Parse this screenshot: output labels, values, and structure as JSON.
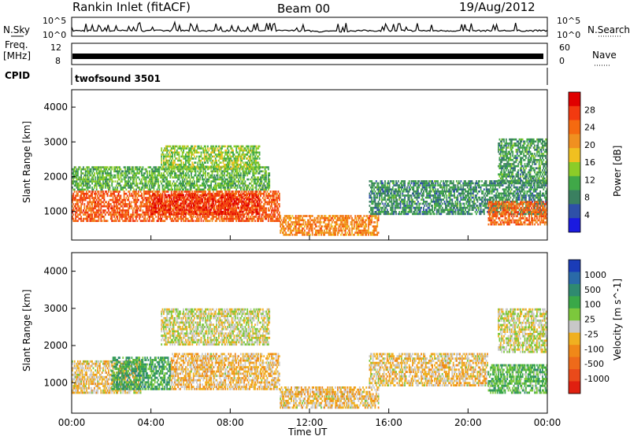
{
  "header": {
    "station": "Rankin Inlet (fitACF)",
    "beam": "Beam 00",
    "date": "19/Aug/2012"
  },
  "noise_panel": {
    "left_label": "N.Sky",
    "right_label": "N.Search",
    "left_ticks": [
      "10^5",
      "10^0"
    ],
    "right_ticks": [
      "10^5",
      "10^0"
    ]
  },
  "freq_panel": {
    "left_label_1": "Freq.",
    "left_label_2": "[MHz]",
    "right_label": "Nave",
    "left_ticks": [
      "12",
      "8"
    ],
    "right_ticks": [
      "60",
      "0"
    ]
  },
  "cpid_panel": {
    "label": "CPID",
    "value": "twofsound 3501"
  },
  "power_panel": {
    "ylabel": "Slant Range [km]",
    "yticks": [
      "4000",
      "3000",
      "2000",
      "1000"
    ],
    "colorbar_label": "Power [dB]",
    "colorbar_ticks": [
      "28",
      "24",
      "20",
      "16",
      "12",
      "8",
      "4"
    ],
    "colorbar_colors": [
      "#e00000",
      "#f23a10",
      "#f56a10",
      "#f09020",
      "#f0c020",
      "#8ccc28",
      "#40a848",
      "#3a8060",
      "#2e50a8",
      "#1a1ae0"
    ]
  },
  "velocity_panel": {
    "ylabel": "Slant Range [km]",
    "yticks": [
      "4000",
      "3000",
      "2000",
      "1000"
    ],
    "colorbar_label": "Velocity [m s^-1]",
    "colorbar_ticks": [
      "1000",
      "500",
      "100",
      "25",
      "-25",
      "-100",
      "-500",
      "-1000"
    ],
    "colorbar_colors": [
      "#1a3cb8",
      "#2a6aa8",
      "#2f8a70",
      "#3aa848",
      "#7cc83c",
      "#c8c8c8",
      "#f0b020",
      "#f08818",
      "#ee6a1a",
      "#ea4a1a",
      "#e02010"
    ]
  },
  "x_axis": {
    "ticks": [
      "00:00",
      "04:00",
      "08:00",
      "12:00",
      "16:00",
      "20:00",
      "00:00"
    ],
    "label": "Time UT"
  },
  "chart_data": [
    {
      "type": "heatmap",
      "title": "Power [dB]",
      "xlabel": "Time UT",
      "ylabel": "Slant Range [km]",
      "x_range_hours": [
        0,
        24
      ],
      "ylim": [
        180,
        4500
      ],
      "color_range": [
        0,
        32
      ],
      "echo_regions": [
        {
          "t0": 0.0,
          "t1": 10.5,
          "r0": 700,
          "r1": 1600,
          "value": 25
        },
        {
          "t0": 4.0,
          "t1": 9.5,
          "r0": 900,
          "r1": 1500,
          "value": 28
        },
        {
          "t0": 0.0,
          "t1": 10.0,
          "r0": 1600,
          "r1": 2300,
          "value": 12
        },
        {
          "t0": 4.5,
          "t1": 9.5,
          "r0": 2200,
          "r1": 2900,
          "value": 14
        },
        {
          "t0": 10.5,
          "t1": 15.5,
          "r0": 300,
          "r1": 900,
          "value": 22
        },
        {
          "t0": 15.0,
          "t1": 24.0,
          "r0": 900,
          "r1": 1900,
          "value": 9
        },
        {
          "t0": 21.0,
          "t1": 24.0,
          "r0": 600,
          "r1": 1300,
          "value": 24
        },
        {
          "t0": 21.5,
          "t1": 24.0,
          "r0": 1800,
          "r1": 3100,
          "value": 10
        }
      ]
    },
    {
      "type": "heatmap",
      "title": "Velocity [m s^-1]",
      "xlabel": "Time UT",
      "ylabel": "Slant Range [km]",
      "x_range_hours": [
        0,
        24
      ],
      "ylim": [
        180,
        4500
      ],
      "color_range": [
        -1000,
        1000
      ],
      "echo_regions": [
        {
          "t0": 0.0,
          "t1": 3.5,
          "r0": 700,
          "r1": 1600,
          "value": -120
        },
        {
          "t0": 2.0,
          "t1": 5.0,
          "r0": 800,
          "r1": 1700,
          "value": 400
        },
        {
          "t0": 5.0,
          "t1": 10.5,
          "r0": 800,
          "r1": 1800,
          "value": -150
        },
        {
          "t0": 4.5,
          "t1": 10.0,
          "r0": 2000,
          "r1": 3000,
          "value": 0
        },
        {
          "t0": 10.5,
          "t1": 15.5,
          "r0": 300,
          "r1": 900,
          "value": -130
        },
        {
          "t0": 15.0,
          "t1": 21.0,
          "r0": 900,
          "r1": 1800,
          "value": -120
        },
        {
          "t0": 21.0,
          "t1": 24.0,
          "r0": 700,
          "r1": 1500,
          "value": 300
        },
        {
          "t0": 21.5,
          "t1": 24.0,
          "r0": 1800,
          "r1": 3000,
          "value": 0
        }
      ]
    }
  ]
}
